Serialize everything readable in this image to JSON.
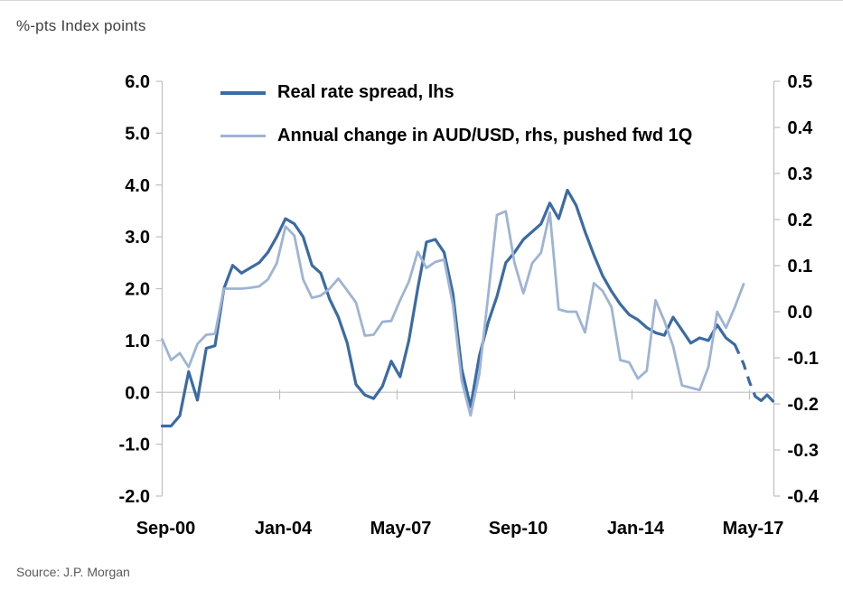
{
  "meta": {
    "units_left": "%-pts",
    "units_right": "Index points",
    "source": "Source: J.P. Morgan"
  },
  "legend": {
    "items": [
      {
        "label": "Real rate spread, lhs",
        "color": "#3a6ba5"
      },
      {
        "label": "Annual change in AUD/USD, rhs, pushed fwd 1Q",
        "color": "#9db4d4"
      }
    ]
  },
  "colors": {
    "dark_blue": "#3a6ba5",
    "light_blue": "#9db4d4",
    "zero_line": "#d0cece",
    "axis_line": "#bfbfbf",
    "tick_text": "#000000"
  },
  "chart_data": {
    "type": "line",
    "title": "",
    "x_axis": {
      "frequency": "quarterly",
      "start_period": "Sep-2000",
      "tick_labels": [
        "Sep-00",
        "Jan-04",
        "May-07",
        "Sep-10",
        "Jan-14",
        "May-17"
      ],
      "tick_months": [
        0,
        40,
        80,
        120,
        160,
        200
      ]
    },
    "left_axis": {
      "label": "%-pts",
      "min": -2.0,
      "max": 6.0,
      "ticks": [
        6.0,
        5.0,
        4.0,
        3.0,
        2.0,
        1.0,
        0.0,
        -1.0,
        -2.0
      ]
    },
    "right_axis": {
      "label": "Index points",
      "min": -0.4,
      "max": 0.5,
      "ticks": [
        0.5,
        0.4,
        0.3,
        0.2,
        0.1,
        0.0,
        -0.1,
        -0.2,
        -0.3,
        -0.4
      ]
    },
    "gridlines": "zero-line-only",
    "legend_position": "top-inside",
    "series": [
      {
        "name": "Real rate spread, lhs",
        "axis": "left",
        "style": "solid",
        "color": "#3a6ba5",
        "width": 3.2,
        "start_month": 0,
        "step_months": 3,
        "values": [
          -0.65,
          -0.65,
          -0.45,
          0.4,
          -0.15,
          0.85,
          0.9,
          2.0,
          2.45,
          2.3,
          2.4,
          2.5,
          2.7,
          3.0,
          3.35,
          3.25,
          3.0,
          2.45,
          2.3,
          1.8,
          1.45,
          0.95,
          0.15,
          -0.05,
          -0.12,
          0.12,
          0.6,
          0.3,
          1.0,
          2.0,
          2.9,
          2.95,
          2.7,
          1.9,
          0.45,
          -0.28,
          0.7,
          1.35,
          1.85,
          2.5,
          2.7,
          2.95,
          3.1,
          3.25,
          3.65,
          3.35,
          3.9,
          3.6,
          3.1,
          2.65,
          2.25,
          1.95,
          1.7,
          1.5,
          1.4,
          1.25,
          1.15,
          1.1,
          1.45,
          1.2,
          0.95,
          1.05,
          1.0,
          1.3,
          1.05,
          0.92
        ]
      },
      {
        "name": "Real rate spread, lhs (forecast, dashed)",
        "axis": "left",
        "style": "dashed",
        "color": "#3a6ba5",
        "width": 3.2,
        "months": [
          195,
          198,
          200,
          202
        ],
        "values": [
          0.92,
          0.55,
          0.2,
          -0.08
        ]
      },
      {
        "name": "Real rate spread, lhs (forecast tail)",
        "axis": "left",
        "style": "solid",
        "color": "#3a6ba5",
        "width": 3.2,
        "months": [
          202,
          204,
          206,
          208
        ],
        "values": [
          -0.08,
          -0.16,
          -0.05,
          -0.17
        ]
      },
      {
        "name": "Annual change in AUD/USD, rhs, pushed fwd 1Q",
        "axis": "right",
        "style": "solid",
        "color": "#9db4d4",
        "width": 2.8,
        "start_month": 0,
        "step_months": 3,
        "values": [
          -0.06,
          -0.105,
          -0.09,
          -0.12,
          -0.07,
          -0.05,
          -0.048,
          0.05,
          0.05,
          0.05,
          0.052,
          0.055,
          0.07,
          0.105,
          0.185,
          0.165,
          0.07,
          0.03,
          0.035,
          0.05,
          0.072,
          0.046,
          0.02,
          -0.052,
          -0.05,
          -0.022,
          -0.02,
          0.025,
          0.065,
          0.13,
          0.095,
          0.108,
          0.113,
          0.015,
          -0.15,
          -0.225,
          -0.135,
          0.035,
          0.21,
          0.218,
          0.105,
          0.04,
          0.105,
          0.128,
          0.215,
          0.005,
          0.0,
          0.0,
          -0.045,
          0.062,
          0.045,
          0.01,
          -0.105,
          -0.11,
          -0.145,
          -0.128,
          0.025,
          -0.02,
          -0.075,
          -0.16,
          -0.165,
          -0.17,
          -0.12,
          0.0,
          -0.035,
          0.01,
          0.06
        ]
      }
    ]
  }
}
